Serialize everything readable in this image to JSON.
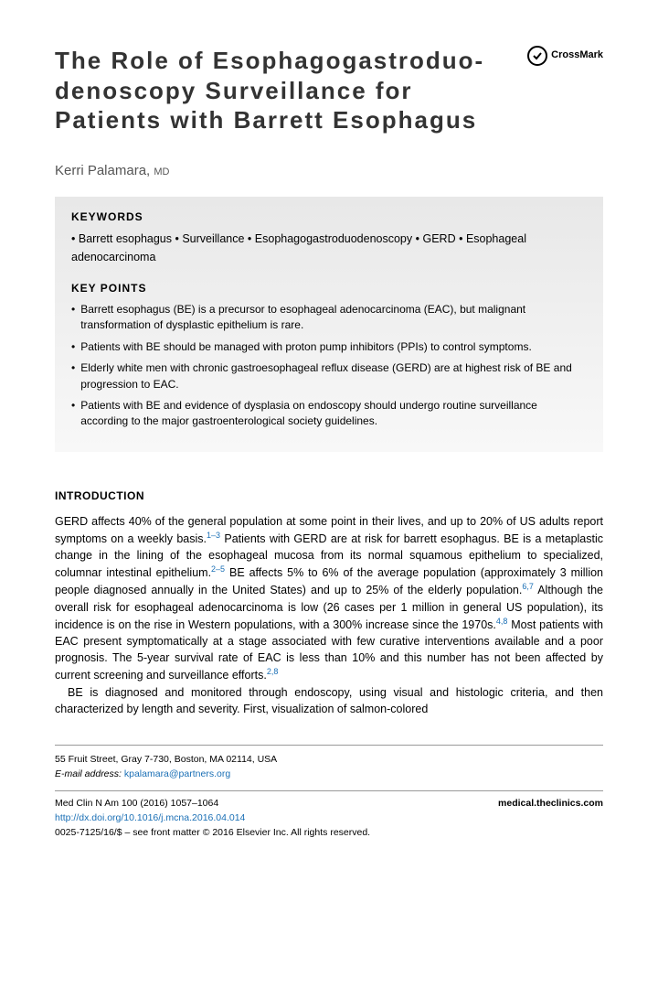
{
  "title": "The Role of Esophagogastroduo-denoscopy Surveillance for Patients with Barrett Esophagus",
  "crossmark": "CrossMark",
  "author": "Kerri Palamara,",
  "author_degree": "MD",
  "keywords_heading": "KEYWORDS",
  "keywords": [
    "Barrett esophagus",
    "Surveillance",
    "Esophagogastroduodenoscopy",
    "GERD",
    "Esophageal adenocarcinoma"
  ],
  "keypoints_heading": "KEY POINTS",
  "keypoints": [
    "Barrett esophagus (BE) is a precursor to esophageal adenocarcinoma (EAC), but malignant transformation of dysplastic epithelium is rare.",
    "Patients with BE should be managed with proton pump inhibitors (PPIs) to control symptoms.",
    "Elderly white men with chronic gastroesophageal reflux disease (GERD) are at highest risk of BE and progression to EAC.",
    "Patients with BE and evidence of dysplasia on endoscopy should undergo routine surveillance according to the major gastroenterological society guidelines."
  ],
  "intro_heading": "INTRODUCTION",
  "para1_a": "GERD affects 40% of the general population at some point in their lives, and up to 20% of US adults report symptoms on a weekly basis.",
  "para1_sup1": "1–3",
  "para1_b": " Patients with GERD are at risk for barrett esophagus. BE is a metaplastic change in the lining of the esophageal mucosa from its normal squamous epithelium to specialized, columnar intestinal epithelium.",
  "para1_sup2": "2–5",
  "para1_c": " BE affects 5% to 6% of the average population (approximately 3 million people diagnosed annually in the United States) and up to 25% of the elderly population.",
  "para1_sup3": "6,7",
  "para1_d": " Although the overall risk for esophageal adenocarcinoma is low (26 cases per 1 million in general US population), its incidence is on the rise in Western populations, with a 300% increase since the 1970s.",
  "para1_sup4": "4,8",
  "para1_e": " Most patients with EAC present symptomatically at a stage associated with few curative interventions available and a poor prognosis. The 5-year survival rate of EAC is less than 10% and this number has not been affected by current screening and surveillance efforts.",
  "para1_sup5": "2,8",
  "para2": "BE is diagnosed and monitored through endoscopy, using visual and histologic criteria, and then characterized by length and severity. First, visualization of salmon-colored",
  "footer_address": "55 Fruit Street, Gray 7-730, Boston, MA 02114, USA",
  "footer_email_label": "E-mail address:",
  "footer_email": "kpalamara@partners.org",
  "footer_journal": "Med Clin N Am 100 (2016) 1057–1064",
  "footer_doi": "http://dx.doi.org/10.1016/j.mcna.2016.04.014",
  "footer_issn": "0025-7125/16/$ – see front matter © 2016 Elsevier Inc. All rights reserved.",
  "footer_site": "medical.theclinics.com"
}
